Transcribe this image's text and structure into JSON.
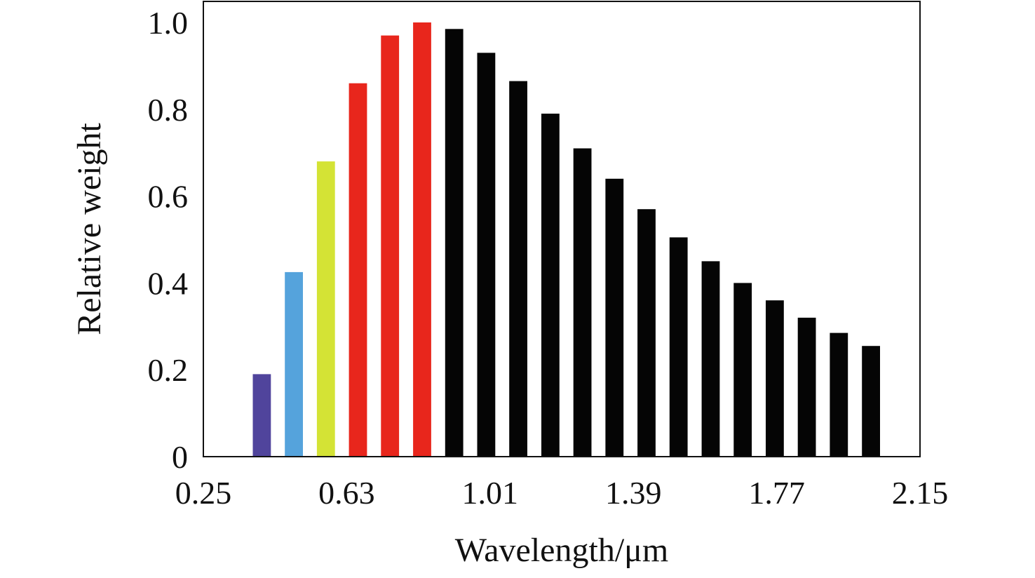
{
  "chart_data": {
    "type": "bar",
    "title": "",
    "xlabel": "Wavelength/μm",
    "ylabel": "Relative weight",
    "xlim": [
      0.25,
      2.15
    ],
    "ylim": [
      0,
      1.0
    ],
    "x_ticks": [
      "0.25",
      "0.63",
      "1.01",
      "1.39",
      "1.77",
      "2.15"
    ],
    "y_ticks": [
      "0",
      "0.2",
      "0.4",
      "0.6",
      "0.8",
      "1.0"
    ],
    "grid": false,
    "legend": "none",
    "bar_width": 0.048,
    "x": [
      0.405,
      0.49,
      0.575,
      0.66,
      0.745,
      0.83,
      0.915,
      1.0,
      1.085,
      1.17,
      1.255,
      1.34,
      1.425,
      1.51,
      1.595,
      1.68,
      1.765,
      1.85,
      1.935,
      2.02
    ],
    "values": [
      0.19,
      0.425,
      0.68,
      0.86,
      0.97,
      1.0,
      0.985,
      0.93,
      0.865,
      0.79,
      0.71,
      0.64,
      0.57,
      0.505,
      0.45,
      0.4,
      0.36,
      0.32,
      0.285,
      0.255
    ],
    "colors": [
      "#50449c",
      "#55a3dc",
      "#d4e335",
      "#e8261c",
      "#e8261c",
      "#e8261c",
      "#050505",
      "#050505",
      "#050505",
      "#050505",
      "#050505",
      "#050505",
      "#050505",
      "#050505",
      "#050505",
      "#050505",
      "#050505",
      "#050505",
      "#050505",
      "#050505"
    ]
  }
}
